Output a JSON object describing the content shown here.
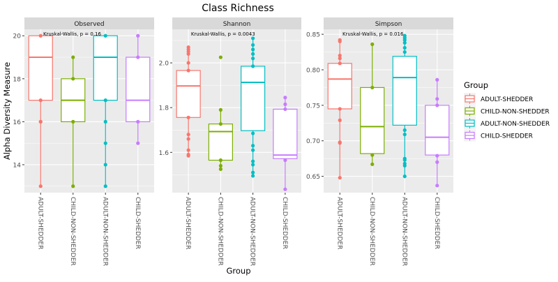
{
  "chart_data": {
    "type": "boxplot",
    "title": "Class Richness",
    "xlabel": "Group",
    "ylabel": "Alpha Diversity Measure",
    "categories": [
      "ADULT-SHEDDER",
      "CHILD-NON-SHEDDER",
      "ADULT-NON-SHEDDER",
      "CHILD-SHEDDER"
    ],
    "colors": [
      "#F8766D",
      "#7CAE00",
      "#00BFC4",
      "#C77CFF"
    ],
    "legend": {
      "title": "Group",
      "position": "right",
      "entries": [
        "ADULT-SHEDDER",
        "CHILD-NON-SHEDDER",
        "ADULT-NON-SHEDDER",
        "CHILD-SHEDDER"
      ]
    },
    "grid": true,
    "panels": [
      {
        "name": "Observed",
        "annotation": "Kruskal-Wallis, p = 0.16",
        "ylim": [
          12.7,
          20.3
        ],
        "yticks": [
          14,
          16,
          18,
          20
        ],
        "ytick_labels": [
          "14",
          "16",
          "18",
          "20"
        ],
        "minor_yticks": [
          13,
          15,
          17,
          19
        ],
        "boxes": [
          {
            "lower": 17,
            "q1": 17,
            "median": 19,
            "q3": 20,
            "upper": 20,
            "whisker_low": 13,
            "whisker_high": 20,
            "points": [
              20,
              17,
              16,
              16,
              13
            ]
          },
          {
            "q1": 16,
            "median": 17,
            "q3": 18,
            "whisker_low": 13,
            "whisker_high": 19,
            "points": [
              19,
              18,
              16,
              13
            ]
          },
          {
            "q1": 17,
            "median": 19,
            "q3": 20,
            "whisker_low": 13,
            "whisker_high": 20,
            "points": [
              20,
              17,
              16,
              15,
              14,
              13
            ]
          },
          {
            "q1": 16,
            "median": 17,
            "q3": 19,
            "whisker_low": 15,
            "whisker_high": 20,
            "points": [
              20,
              19,
              16,
              15
            ]
          }
        ]
      },
      {
        "name": "Shannon",
        "annotation": "Kruskal-Wallis, p = 0.0043",
        "ylim": [
          1.42,
          2.15
        ],
        "yticks": [
          1.6,
          1.8,
          2.0
        ],
        "ytick_labels": [
          "1.6",
          "1.8",
          "2.0"
        ],
        "minor_yticks": [
          1.5,
          1.7,
          1.9,
          2.1
        ],
        "boxes": [
          {
            "q1": 1.756,
            "median": 1.897,
            "q3": 1.966,
            "whisker_low": 1.58,
            "whisker_high": 2.07,
            "points": [
              2.07,
              2.06,
              2.05,
              2.04,
              2.0,
              1.966,
              1.756,
              1.68,
              1.66,
              1.61,
              1.59,
              1.585
            ]
          },
          {
            "q1": 1.565,
            "median": 1.693,
            "q3": 1.727,
            "whisker_low": 1.525,
            "whisker_high": 1.79,
            "points": [
              2.025,
              1.79,
              1.727,
              1.565,
              1.54,
              1.525
            ]
          },
          {
            "q1": 1.697,
            "median": 1.913,
            "q3": 1.985,
            "whisker_low": 1.495,
            "whisker_high": 2.11,
            "points": [
              2.11,
              2.08,
              2.06,
              2.04,
              2.02,
              1.985,
              1.685,
              1.63,
              1.61,
              1.56,
              1.545,
              1.51,
              1.495
            ]
          },
          {
            "q1": 1.572,
            "median": 1.588,
            "q3": 1.793,
            "whisker_low": 1.435,
            "whisker_high": 1.845,
            "points": [
              1.845,
              1.815,
              1.793,
              1.565,
              1.435
            ]
          }
        ]
      },
      {
        "name": "Simpson",
        "annotation": "Kruskal-Wallis, p = 0.016",
        "ylim": [
          0.627,
          0.857
        ],
        "yticks": [
          0.65,
          0.7,
          0.75,
          0.8,
          0.85
        ],
        "ytick_labels": [
          "0.65",
          "0.70",
          "0.75",
          "0.80",
          "0.85"
        ],
        "minor_yticks": [
          0.675,
          0.725,
          0.775,
          0.825
        ],
        "boxes": [
          {
            "q1": 0.745,
            "median": 0.787,
            "q3": 0.809,
            "whisker_low": 0.648,
            "whisker_high": 0.842,
            "points": [
              0.842,
              0.84,
              0.82,
              0.816,
              0.809,
              0.745,
              0.729,
              0.698,
              0.697,
              0.648
            ]
          },
          {
            "q1": 0.682,
            "median": 0.72,
            "q3": 0.775,
            "whisker_low": 0.667,
            "whisker_high": 0.836,
            "points": [
              0.836,
              0.775,
              0.68,
              0.667
            ]
          },
          {
            "q1": 0.722,
            "median": 0.789,
            "q3": 0.819,
            "whisker_low": 0.65,
            "whisker_high": 0.848,
            "points": [
              0.848,
              0.845,
              0.842,
              0.838,
              0.831,
              0.825,
              0.715,
              0.709,
              0.675,
              0.673,
              0.668,
              0.665,
              0.65
            ]
          },
          {
            "q1": 0.68,
            "median": 0.705,
            "q3": 0.75,
            "whisker_low": 0.637,
            "whisker_high": 0.786,
            "points": [
              0.786,
              0.759,
              0.75,
              0.679,
              0.67,
              0.637
            ]
          }
        ]
      }
    ]
  }
}
